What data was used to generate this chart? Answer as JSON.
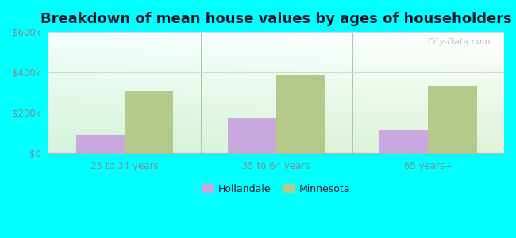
{
  "title": "Breakdown of mean house values by ages of householders",
  "categories": [
    "25 to 34 years",
    "35 to 64 years",
    "65 years+"
  ],
  "hollandale_values": [
    90000,
    175000,
    115000
  ],
  "minnesota_values": [
    305000,
    385000,
    330000
  ],
  "hollandale_color": "#c9a8e0",
  "minnesota_color": "#b5c98a",
  "ylim": [
    0,
    600000
  ],
  "yticks": [
    0,
    200000,
    400000,
    600000
  ],
  "ytick_labels": [
    "$0",
    "$200k",
    "$400k",
    "$600k"
  ],
  "background_outer": "#00FFFF",
  "title_fontsize": 13,
  "title_color": "#1a1a2e",
  "legend_labels": [
    "Hollandale",
    "Minnesota"
  ],
  "bar_width": 0.32,
  "watermark": "City-Data.com",
  "tick_color": "#888899",
  "grid_color": "#ccddcc",
  "divider_color": "#aaccaa"
}
